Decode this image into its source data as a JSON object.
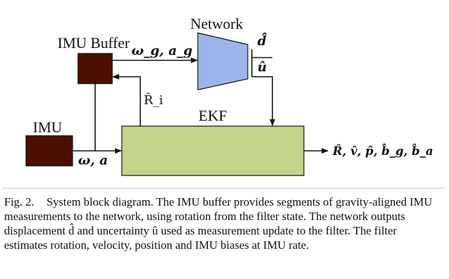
{
  "diagram": {
    "blocks": {
      "network": {
        "label": "Network",
        "color": "#9db4ea"
      },
      "imu_buffer": {
        "label": "IMU Buffer",
        "color": "#4a0f00"
      },
      "imu": {
        "label": "IMU",
        "color": "#4a0f00"
      },
      "ekf": {
        "label": "EKF",
        "color": "#c3d588"
      }
    },
    "signals": {
      "buffer_to_network": "ω_g, a_g",
      "network_out_d": "d̂",
      "network_out_u": "û",
      "ekf_to_buffer": "R̂_i",
      "imu_to_ekf": "ω, a",
      "ekf_output": "R̂, v̂, p̂, b̂_g, b̂_a"
    }
  },
  "caption": {
    "fig_number": "Fig. 2.",
    "text": "System block diagram. The IMU buffer provides segments of gravity-aligned IMU measurements to the network, using rotation from the filter state. The network outputs displacement d̂ and uncertainty û used as measurement update to the filter. The filter estimates rotation, velocity, position and IMU biases at IMU rate."
  }
}
